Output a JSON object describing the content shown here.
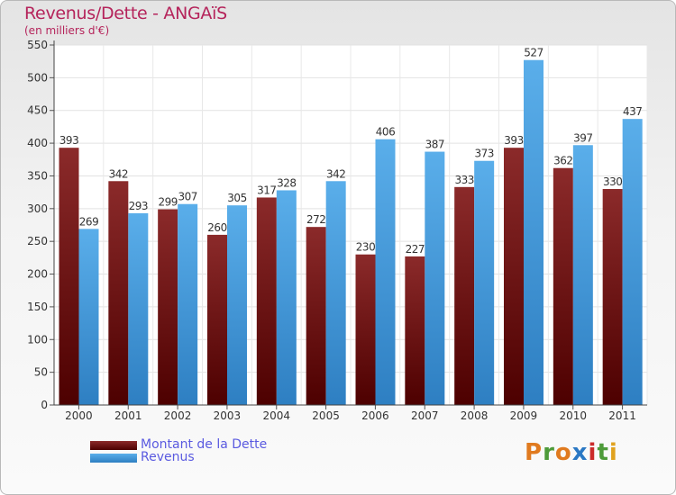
{
  "header": {
    "title": "Revenus/Dette - ANGAïS",
    "subtitle": "(en milliers d'€)"
  },
  "logo": {
    "text": "Proxiti",
    "letters": [
      "P",
      "r",
      "o",
      "x",
      "i",
      "t",
      "i"
    ],
    "colors": [
      "#e07a1f",
      "#4e9b3a",
      "#e07a1f",
      "#2b78c4",
      "#cc2b2b",
      "#4e9b3a",
      "#e0a21f"
    ]
  },
  "chart_data": {
    "type": "bar",
    "title": "Revenus/Dette - ANGAïS",
    "subtitle": "(en milliers d'€)",
    "xlabel": "",
    "ylabel": "",
    "categories": [
      "2000",
      "2001",
      "2002",
      "2003",
      "2004",
      "2005",
      "2006",
      "2007",
      "2008",
      "2009",
      "2010",
      "2011"
    ],
    "series": [
      {
        "name": "Montant de la Dette",
        "color_light": "#8b2a2a",
        "color_dark": "#4d0000",
        "values": [
          393,
          342,
          299,
          260,
          317,
          272,
          230,
          227,
          333,
          393,
          362,
          330
        ]
      },
      {
        "name": "Revenus",
        "color_light": "#5aaeea",
        "color_dark": "#2e7fc2",
        "values": [
          269,
          293,
          307,
          305,
          328,
          342,
          406,
          387,
          373,
          527,
          397,
          437
        ]
      }
    ],
    "ylim": [
      0,
      550
    ],
    "yticks": [
      0,
      50,
      100,
      150,
      200,
      250,
      300,
      350,
      400,
      450,
      500,
      550
    ],
    "grid": true,
    "legend_position": "bottom-left"
  }
}
